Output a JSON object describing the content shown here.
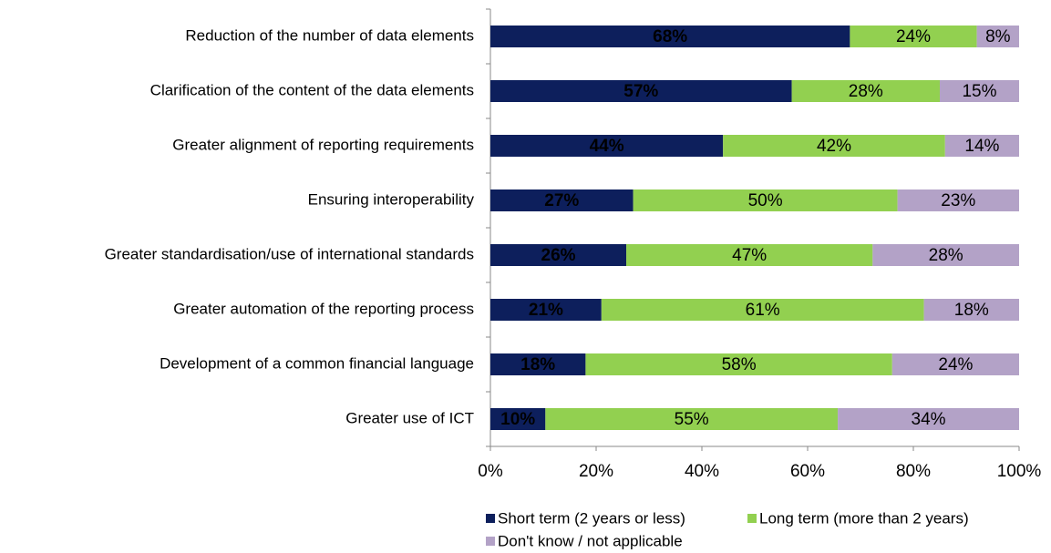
{
  "chart_data": {
    "type": "stacked-barh",
    "categories": [
      "Reduction of the number of data elements",
      "Clarification of the content of the data elements",
      "Greater alignment of reporting requirements",
      "Ensuring interoperability",
      "Greater standardisation/use of international standards",
      "Greater automation of the reporting process",
      "Development of a common financial language",
      "Greater use of ICT"
    ],
    "series": [
      {
        "name": "Short term (2 years or less)",
        "color": "#0d1f5c",
        "values": [
          68,
          57,
          44,
          27,
          25.7,
          21,
          18,
          10.4
        ],
        "value_labels": [
          "68%",
          "57%",
          "44%",
          "27%",
          "26%",
          "21%",
          "18%",
          "10%"
        ]
      },
      {
        "name": "Long term (more than 2 years)",
        "color": "#92d050",
        "values": [
          24,
          28,
          42,
          50,
          46.6,
          61,
          58,
          55.3
        ],
        "value_labels": [
          "24%",
          "28%",
          "42%",
          "50%",
          "47%",
          "61%",
          "58%",
          "55%"
        ]
      },
      {
        "name": "Don't know / not applicable",
        "color": "#b3a2c7",
        "values": [
          8,
          15,
          14,
          23,
          27.7,
          18,
          24,
          34.3
        ],
        "value_labels": [
          "8%",
          "15%",
          "14%",
          "23%",
          "28%",
          "18%",
          "24%",
          "34%"
        ]
      }
    ],
    "xlim": [
      0,
      100
    ],
    "xticks": [
      {
        "value": 0,
        "label": "0%"
      },
      {
        "value": 20,
        "label": "20%"
      },
      {
        "value": 40,
        "label": "40%"
      },
      {
        "value": 60,
        "label": "60%"
      },
      {
        "value": 80,
        "label": "80%"
      },
      {
        "value": 100,
        "label": "100%"
      }
    ],
    "legend": "bottom"
  }
}
